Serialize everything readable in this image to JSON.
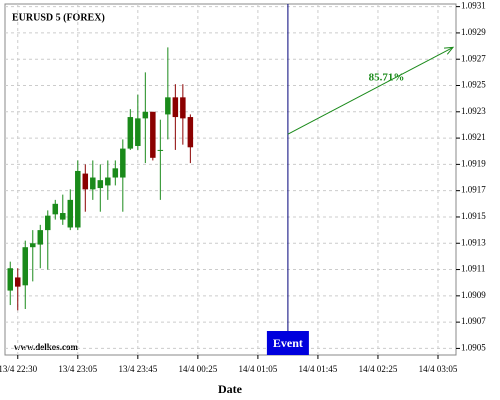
{
  "chart_data": {
    "type": "candlestick",
    "title": "EURUSD 5 (FOREX)",
    "watermark": "www.delkos.com",
    "xlabel": "Date",
    "x": [
      0,
      1,
      2,
      3,
      4,
      5,
      6,
      7,
      8,
      9,
      10,
      11,
      12,
      13,
      14,
      15,
      16,
      17,
      18,
      19,
      20,
      21,
      22,
      23,
      24
    ],
    "open": [
      1.09094,
      1.09104,
      1.09098,
      1.09127,
      1.09129,
      1.0914,
      1.09152,
      1.09148,
      1.09142,
      1.09142,
      1.09183,
      1.09171,
      1.09172,
      1.09174,
      1.0918,
      1.0918,
      1.09202,
      1.09204,
      1.09225,
      1.0923,
      1.09201,
      1.09228,
      1.09241,
      1.09241,
      1.09226
    ],
    "high": [
      1.09116,
      1.09111,
      1.09132,
      1.0914,
      1.09144,
      1.09155,
      1.09163,
      1.09167,
      1.09171,
      1.09193,
      1.0919,
      1.09193,
      1.0919,
      1.09193,
      1.09193,
      1.09209,
      1.09232,
      1.09243,
      1.0926,
      1.0923,
      1.09224,
      1.09279,
      1.09251,
      1.09251,
      1.09228
    ],
    "low": [
      1.09083,
      1.09079,
      1.0908,
      1.09101,
      1.09111,
      1.0911,
      1.09148,
      1.09144,
      1.0914,
      1.0914,
      1.09154,
      1.09163,
      1.09154,
      1.09163,
      1.09174,
      1.09154,
      1.09201,
      1.09201,
      1.09191,
      1.09193,
      1.09163,
      1.09209,
      1.09201,
      1.09205,
      1.09191
    ],
    "close": [
      1.09111,
      1.09097,
      1.09127,
      1.0913,
      1.0914,
      1.09151,
      1.0916,
      1.09153,
      1.09163,
      1.09185,
      1.09171,
      1.0918,
      1.09178,
      1.0918,
      1.09187,
      1.09202,
      1.09226,
      1.09225,
      1.0923,
      1.09195,
      1.09201,
      1.09241,
      1.09226,
      1.09225,
      1.09203
    ],
    "up_color": "#1a8a1a",
    "down_color": "#8b0000",
    "xlim": [
      -0.7,
      59.4
    ],
    "xticks": [
      {
        "value": 1,
        "label": "13/4 22:30"
      },
      {
        "value": 9,
        "label": "13/4 23:05"
      },
      {
        "value": 17,
        "label": "13/4 23:45"
      },
      {
        "value": 25,
        "label": "14/4 00:25"
      },
      {
        "value": 33,
        "label": "14/4 01:05"
      },
      {
        "value": 41,
        "label": "14/4 01:45"
      },
      {
        "value": 49,
        "label": "14/4 02:25"
      },
      {
        "value": 57,
        "label": "14/4 03:05"
      }
    ],
    "ylim": [
      1.09045,
      1.09312
    ],
    "yticks": [
      1.0905,
      1.0907,
      1.0909,
      1.0911,
      1.0913,
      1.0915,
      1.0917,
      1.0919,
      1.0921,
      1.0923,
      1.0925,
      1.0927,
      1.0929,
      1.0931
    ],
    "grid": true,
    "event": {
      "label": "Event",
      "x": 37,
      "color": "#0000dd"
    },
    "projection": {
      "label": "85.71%",
      "x": [
        37,
        59
      ],
      "y": [
        1.09213,
        1.09279
      ],
      "color": "#1a8a1a"
    }
  }
}
